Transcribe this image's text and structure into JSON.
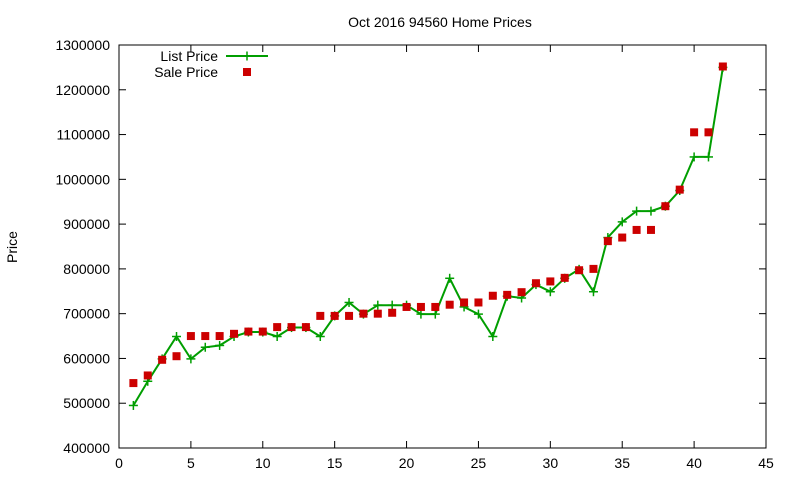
{
  "chart_data": {
    "type": "line",
    "title": "Oct 2016 94560 Home Prices",
    "xlabel": "",
    "ylabel": "Price",
    "xlim": [
      0,
      45
    ],
    "ylim": [
      400000,
      1300000
    ],
    "x_ticks": [
      "0",
      "5",
      "10",
      "15",
      "20",
      "25",
      "30",
      "35",
      "40",
      "45"
    ],
    "y_ticks": [
      "400000",
      "500000",
      "600000",
      "700000",
      "800000",
      "900000",
      "1000000",
      "1100000",
      "1200000",
      "1300000"
    ],
    "grid": false,
    "legend_position": "top-left",
    "series": [
      {
        "name": "List Price",
        "style": "line-plus",
        "color": "#009e00",
        "x": [
          1,
          2,
          3,
          4,
          5,
          6,
          7,
          8,
          9,
          10,
          11,
          12,
          13,
          14,
          15,
          16,
          17,
          18,
          19,
          20,
          21,
          22,
          23,
          24,
          25,
          26,
          27,
          28,
          29,
          30,
          31,
          32,
          33,
          34,
          35,
          36,
          37,
          38,
          39,
          40,
          41,
          42
        ],
        "values": [
          495000,
          549000,
          599000,
          649000,
          599000,
          625000,
          629000,
          649000,
          659000,
          659000,
          649000,
          669000,
          669000,
          649000,
          695000,
          725000,
          699000,
          719000,
          719000,
          719000,
          699000,
          699000,
          779000,
          715000,
          699000,
          649000,
          739000,
          735000,
          765000,
          749000,
          779000,
          799000,
          749000,
          870000,
          905000,
          929000,
          929000,
          940000,
          975000,
          1050000,
          1050000,
          1250000
        ]
      },
      {
        "name": "Sale Price",
        "style": "square",
        "color": "#cc0000",
        "x": [
          1,
          2,
          3,
          4,
          5,
          6,
          7,
          8,
          9,
          10,
          11,
          12,
          13,
          14,
          15,
          16,
          17,
          18,
          19,
          20,
          21,
          22,
          23,
          24,
          25,
          26,
          27,
          28,
          29,
          30,
          31,
          32,
          33,
          34,
          35,
          36,
          37,
          38,
          39,
          40,
          41,
          42
        ],
        "values": [
          545000,
          562000,
          597000,
          605000,
          650000,
          650000,
          650000,
          655000,
          660000,
          660000,
          670000,
          670000,
          670000,
          695000,
          695000,
          695000,
          700000,
          700000,
          702000,
          715000,
          715000,
          715000,
          720000,
          725000,
          725000,
          740000,
          742000,
          748000,
          768000,
          772000,
          780000,
          797000,
          800000,
          862000,
          870000,
          887000,
          887000,
          940000,
          977000,
          1105000,
          1105000,
          1252000
        ]
      }
    ]
  }
}
